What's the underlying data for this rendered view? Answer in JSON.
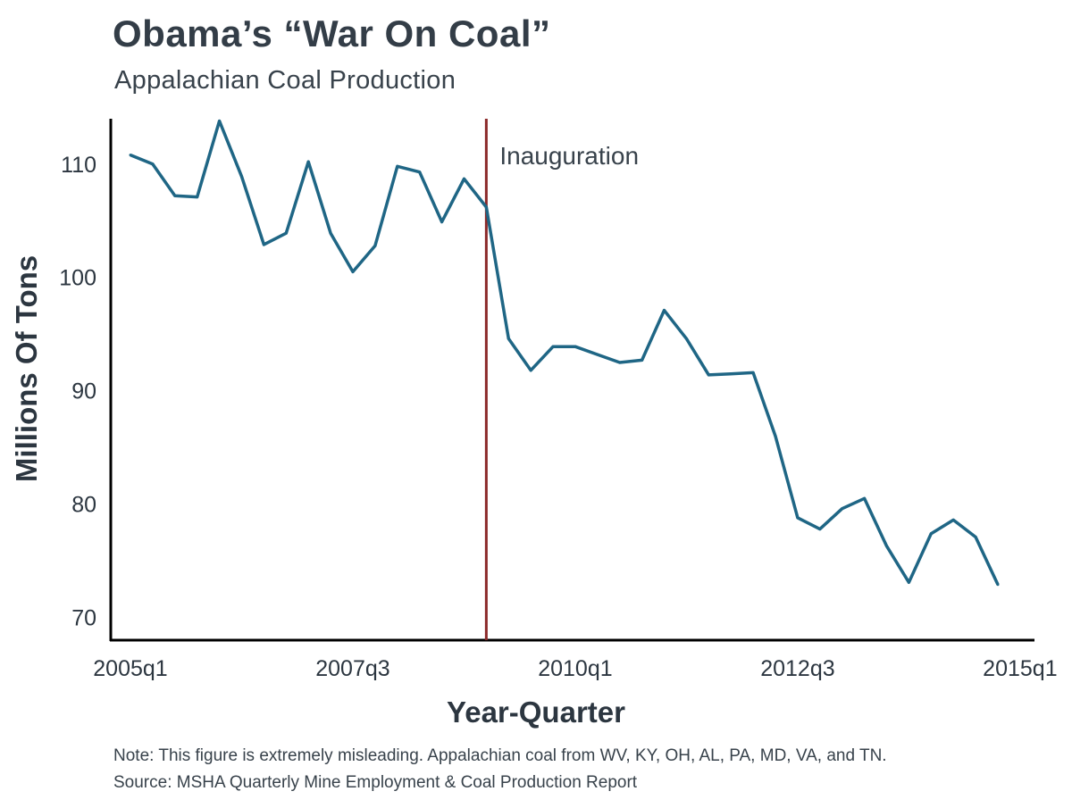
{
  "header": {
    "title": "Obama’s “War On Coal”",
    "subtitle": "Appalachian Coal Production"
  },
  "chart_data": {
    "type": "line",
    "title": "Obama’s “War On Coal”",
    "subtitle": "Appalachian Coal Production",
    "xlabel": "Year-Quarter",
    "ylabel": "Millions Of Tons",
    "ylim": [
      68,
      114
    ],
    "yticks": [
      70,
      80,
      90,
      100,
      110
    ],
    "xticks": [
      "2005q1",
      "2007q3",
      "2010q1",
      "2012q3",
      "2015q1"
    ],
    "grid": false,
    "line_color": "#1f6685",
    "x": [
      "2005q1",
      "2005q2",
      "2005q3",
      "2005q4",
      "2006q1",
      "2006q2",
      "2006q3",
      "2006q4",
      "2007q1",
      "2007q2",
      "2007q3",
      "2007q4",
      "2008q1",
      "2008q2",
      "2008q3",
      "2008q4",
      "2009q1",
      "2009q2",
      "2009q3",
      "2009q4",
      "2010q1",
      "2010q2",
      "2010q3",
      "2010q4",
      "2011q1",
      "2011q2",
      "2011q3",
      "2011q4",
      "2012q1",
      "2012q2",
      "2012q3",
      "2012q4",
      "2013q1",
      "2013q2",
      "2013q3",
      "2013q4",
      "2014q1",
      "2014q2",
      "2014q3",
      "2014q4"
    ],
    "values": [
      110.8,
      110.0,
      107.2,
      107.1,
      113.8,
      108.9,
      102.9,
      103.9,
      110.2,
      103.9,
      100.5,
      102.8,
      109.8,
      109.3,
      104.9,
      108.7,
      106.2,
      94.6,
      91.8,
      93.9,
      93.9,
      93.2,
      92.5,
      92.7,
      97.1,
      94.6,
      91.4,
      91.5,
      91.6,
      86.0,
      78.8,
      77.8,
      79.6,
      80.5,
      76.3,
      73.1,
      77.4,
      78.6,
      77.1,
      72.9
    ],
    "annotation": {
      "label": "Inauguration",
      "position": "2009q1",
      "color": "#8b2a2a"
    }
  },
  "notes": {
    "note": "Note: This figure is extremely misleading. Appalachian coal from WV, KY, OH, AL, PA, MD, VA, and TN.",
    "source": "Source: MSHA Quarterly Mine Employment & Coal Production Report"
  }
}
